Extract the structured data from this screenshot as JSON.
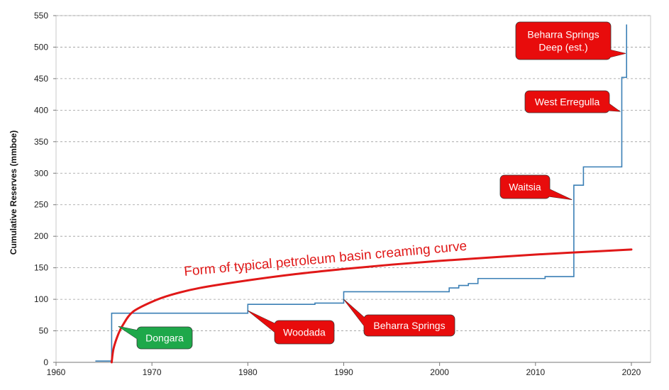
{
  "chart_data": {
    "type": "line",
    "title": "",
    "xlabel": "",
    "ylabel": "Cumulative Reserves  (mmboe)",
    "xlim": [
      1960,
      2022
    ],
    "ylim": [
      0,
      550
    ],
    "x_ticks": [
      1960,
      1970,
      1980,
      1990,
      2000,
      2010,
      2020
    ],
    "y_ticks": [
      0,
      50,
      100,
      150,
      200,
      250,
      300,
      350,
      400,
      450,
      500,
      550
    ],
    "grid": "horizontal-dashed",
    "series": [
      {
        "name": "Cumulative Reserves",
        "style": "step",
        "color": "#3a7fb5",
        "points": [
          [
            1964.1,
            2
          ],
          [
            1965.8,
            2
          ],
          [
            1965.8,
            78
          ],
          [
            1980.0,
            78
          ],
          [
            1980.0,
            92
          ],
          [
            1987.0,
            92
          ],
          [
            1987.0,
            94
          ],
          [
            1990.0,
            94
          ],
          [
            1990.0,
            112
          ],
          [
            2001.0,
            112
          ],
          [
            2001.0,
            118
          ],
          [
            2002.0,
            118
          ],
          [
            2002.0,
            122
          ],
          [
            2003.0,
            122
          ],
          [
            2003.0,
            125
          ],
          [
            2004.0,
            125
          ],
          [
            2004.0,
            133
          ],
          [
            2011.0,
            133
          ],
          [
            2011.0,
            136
          ],
          [
            2014.0,
            136
          ],
          [
            2014.0,
            281
          ],
          [
            2015.0,
            281
          ],
          [
            2015.0,
            310
          ],
          [
            2019.0,
            310
          ],
          [
            2019.0,
            452
          ],
          [
            2019.5,
            452
          ],
          [
            2019.5,
            536
          ]
        ]
      },
      {
        "name": "Form of typical petroleum basin creaming curve",
        "style": "smooth",
        "color": "#e01818",
        "points": [
          [
            1965.8,
            0
          ],
          [
            1966.0,
            22
          ],
          [
            1966.5,
            45
          ],
          [
            1967.0,
            60
          ],
          [
            1968.0,
            80
          ],
          [
            1970.0,
            96
          ],
          [
            1972.0,
            107
          ],
          [
            1975.0,
            118
          ],
          [
            1980.0,
            130
          ],
          [
            1985.0,
            140
          ],
          [
            1990.0,
            148
          ],
          [
            1995.0,
            155
          ],
          [
            2000.0,
            161
          ],
          [
            2005.0,
            166
          ],
          [
            2010.0,
            171
          ],
          [
            2015.0,
            175
          ],
          [
            2020.0,
            179
          ]
        ]
      }
    ],
    "curve_label": "Form of typical petroleum basin creaming curve",
    "annotations": [
      {
        "text": "Dongara",
        "color": "#1ea84a",
        "points_to": [
          1966.5,
          57
        ]
      },
      {
        "text": "Woodada",
        "color": "#e80c0c",
        "points_to": [
          1980.0,
          82
        ]
      },
      {
        "text": "Beharra Springs",
        "color": "#e80c0c",
        "points_to": [
          1990.0,
          100
        ]
      },
      {
        "text": "Waitsia",
        "color": "#e80c0c",
        "points_to": [
          2013.8,
          258
        ]
      },
      {
        "text": "West Erregulla",
        "color": "#e80c0c",
        "points_to": [
          2018.8,
          398
        ]
      },
      {
        "text": "Beharra Springs Deep (est.)",
        "lines": [
          "Beharra Springs",
          "Deep (est.)"
        ],
        "color": "#e80c0c",
        "points_to": [
          2019.4,
          490
        ]
      }
    ]
  }
}
